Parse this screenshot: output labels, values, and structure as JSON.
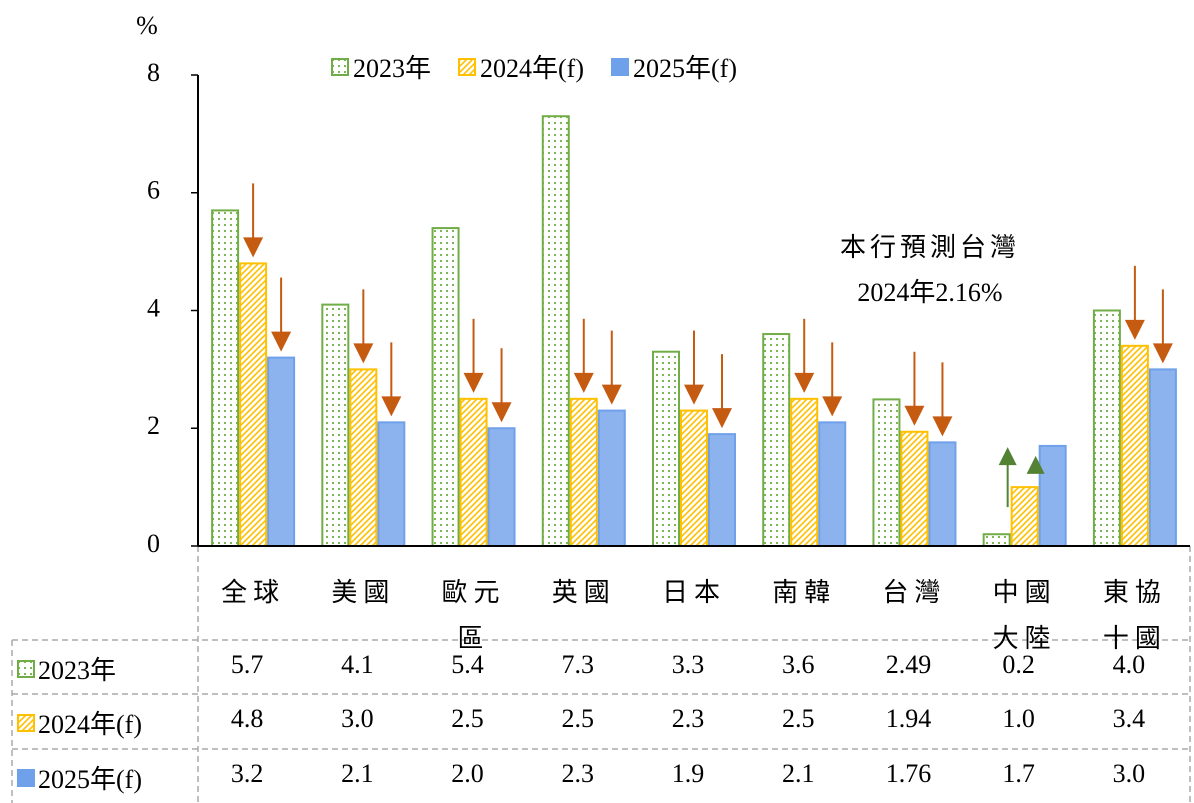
{
  "chart_data": {
    "type": "bar",
    "y_unit": "%",
    "categories": [
      "全球",
      "美國",
      "歐元區",
      "英國",
      "日本",
      "南韓",
      "台灣",
      "中國大陸",
      "東協十國"
    ],
    "series": [
      {
        "name": "2023年",
        "color": "#70ad47",
        "fill_style": "dots",
        "values": [
          5.7,
          4.1,
          5.4,
          7.3,
          3.3,
          3.6,
          2.49,
          0.2,
          4.0
        ],
        "value_labels": [
          "5.7",
          "4.1",
          "5.4",
          "7.3",
          "3.3",
          "3.6",
          "2.49",
          "0.2",
          "4.0"
        ]
      },
      {
        "name": "2024年(f)",
        "color": "#ffc000",
        "fill_style": "hatch",
        "values": [
          4.8,
          3.0,
          2.5,
          2.5,
          2.3,
          2.5,
          1.94,
          1.0,
          3.4
        ],
        "value_labels": [
          "4.8",
          "3.0",
          "2.5",
          "2.5",
          "2.3",
          "2.5",
          "1.94",
          "1.0",
          "3.4"
        ]
      },
      {
        "name": "2025年(f)",
        "color": "#6fa0ea",
        "fill_style": "solid",
        "values": [
          3.2,
          2.1,
          2.0,
          2.3,
          1.9,
          2.1,
          1.76,
          1.7,
          3.0
        ],
        "value_labels": [
          "3.2",
          "2.1",
          "2.0",
          "2.3",
          "1.9",
          "2.1",
          "1.76",
          "1.7",
          "3.0"
        ]
      }
    ],
    "annotations": [
      "本行預測台灣",
      "2024年2.16%"
    ],
    "ylim": [
      0,
      8
    ],
    "yticks": [
      0,
      2,
      4,
      6,
      8
    ]
  }
}
